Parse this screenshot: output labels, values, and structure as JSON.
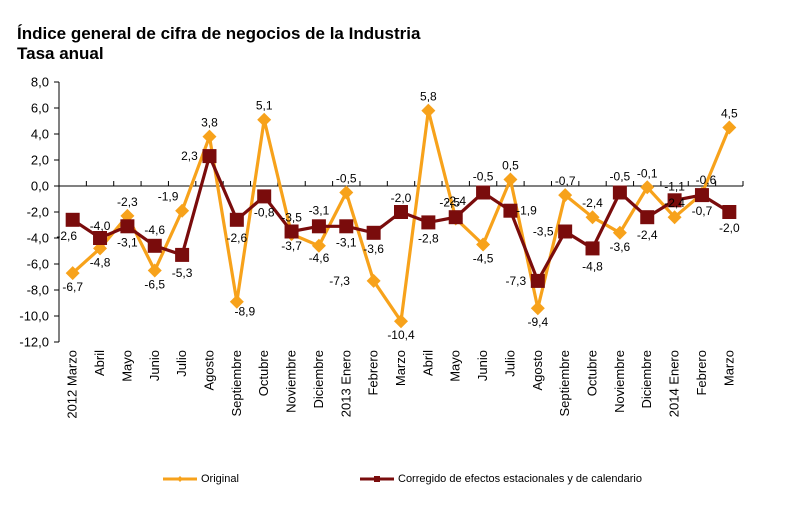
{
  "chart_data": {
    "type": "line",
    "title": "Índice general de cifra de negocios de la Industria",
    "subtitle": "Tasa anual",
    "xlabel": "",
    "ylabel": "",
    "ylim": [
      -12,
      8
    ],
    "yticks": [
      8,
      6,
      4,
      2,
      0,
      -2,
      -4,
      -6,
      -8,
      -10,
      -12
    ],
    "ytick_labels": [
      "8,0",
      "6,0",
      "4,0",
      "2,0",
      "0,0",
      "-2,0",
      "-4,0",
      "-6,0",
      "-8,0",
      "-10,0",
      "-12,0"
    ],
    "grid": false,
    "legend_position": "bottom",
    "categories": [
      "2012 Marzo",
      "Abril",
      "Mayo",
      "Junio",
      "Julio",
      "Agosto",
      "Septiembre",
      "Octubre",
      "Noviembre",
      "Diciembre",
      "2013 Enero",
      "Febrero",
      "Marzo",
      "Abril",
      "Mayo",
      "Junio",
      "Julio",
      "Agosto",
      "Septiembre",
      "Octubre",
      "Noviembre",
      "Diciembre",
      "2014 Enero",
      "Febrero",
      "Marzo"
    ],
    "series": [
      {
        "name": "Original",
        "color": "#F7A21B",
        "marker": "diamond",
        "values": [
          -6.7,
          -4.8,
          -2.3,
          -6.5,
          -1.9,
          3.8,
          -8.9,
          5.1,
          -3.7,
          -4.6,
          -0.5,
          -7.3,
          -10.4,
          5.8,
          -2.5,
          -4.5,
          0.5,
          -9.4,
          -0.7,
          -2.4,
          -3.6,
          -0.1,
          -2.4,
          -0.6,
          4.5
        ],
        "labels": [
          "-6,7",
          "-4,8",
          "-2,3",
          "-6,5",
          "-1,9",
          "3,8",
          "-8,9",
          "5,1",
          "-3,7",
          "-4,6",
          "-0,5",
          "-7,3",
          "-10,4",
          "5,8",
          "-2,5",
          "-4,5",
          "0,5",
          "-9,4",
          "-0,7",
          "-2,4",
          "-3,6",
          "-0,1",
          "-2,4",
          "-0,6",
          "4,5"
        ]
      },
      {
        "name": "Corregido de efectos estacionales y de calendario",
        "color": "#7A0C0C",
        "marker": "square",
        "values": [
          -2.6,
          -4.0,
          -3.1,
          -4.6,
          -5.3,
          2.3,
          -2.6,
          -0.8,
          -3.5,
          -3.1,
          -3.1,
          -3.6,
          -2.0,
          -2.8,
          -2.4,
          -0.5,
          -1.9,
          -7.3,
          -3.5,
          -4.8,
          -0.5,
          -2.4,
          -1.1,
          -0.7,
          -2.0
        ],
        "labels": [
          "-2,6",
          "-4,0",
          "-3,1",
          "-4,6",
          "-5,3",
          "2,3",
          "-2,6",
          "-0,8",
          "-3,5",
          "-3,1",
          "-3,1",
          "-3,6",
          "-2,0",
          "-2,8",
          "-2,4",
          "-0,5",
          "-1,9",
          "-7,3",
          "-3,5",
          "-4,8",
          "-0,5",
          "-2,4",
          "-1,1",
          "-0,7",
          "-2,0"
        ]
      }
    ]
  },
  "legend": {
    "original_label": "Original",
    "corrected_label": "Corregido de efectos estacionales y de calendario"
  }
}
